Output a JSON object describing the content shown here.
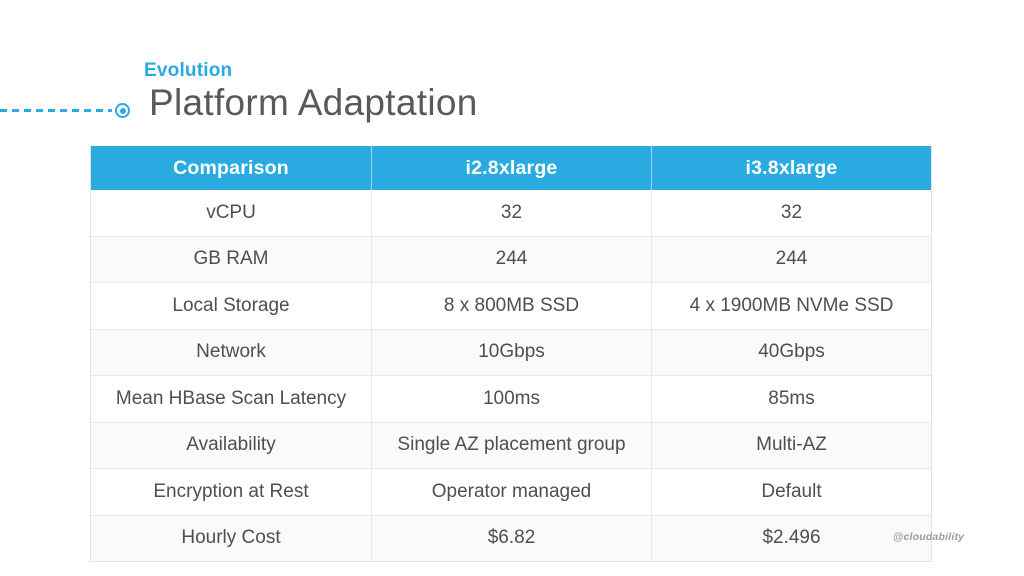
{
  "page": {
    "kicker": "Evolution",
    "title": "Platform Adaptation",
    "watermark": "@cloudability"
  },
  "colors": {
    "accent_blue": "#29ABE2",
    "title_gray": "#58595B",
    "body_text": "#4F4F4F",
    "stripe_row": "#FAFAFA",
    "grid_line": "#E9E9E9"
  },
  "icons": {
    "bullseye": "timeline bullet target glyph"
  },
  "table": {
    "headers": [
      "Comparison",
      "i2.8xlarge",
      "i3.8xlarge"
    ],
    "rows": [
      [
        "vCPU",
        "32",
        "32"
      ],
      [
        "GB RAM",
        "244",
        "244"
      ],
      [
        "Local Storage",
        "8 x 800MB SSD",
        "4 x 1900MB NVMe SSD"
      ],
      [
        "Network",
        "10Gbps",
        "40Gbps"
      ],
      [
        "Mean HBase Scan Latency",
        "100ms",
        "85ms"
      ],
      [
        "Availability",
        "Single AZ placement group",
        "Multi-AZ"
      ],
      [
        "Encryption at Rest",
        "Operator managed",
        "Default"
      ],
      [
        "Hourly Cost",
        "$6.82",
        "$2.496"
      ]
    ]
  }
}
